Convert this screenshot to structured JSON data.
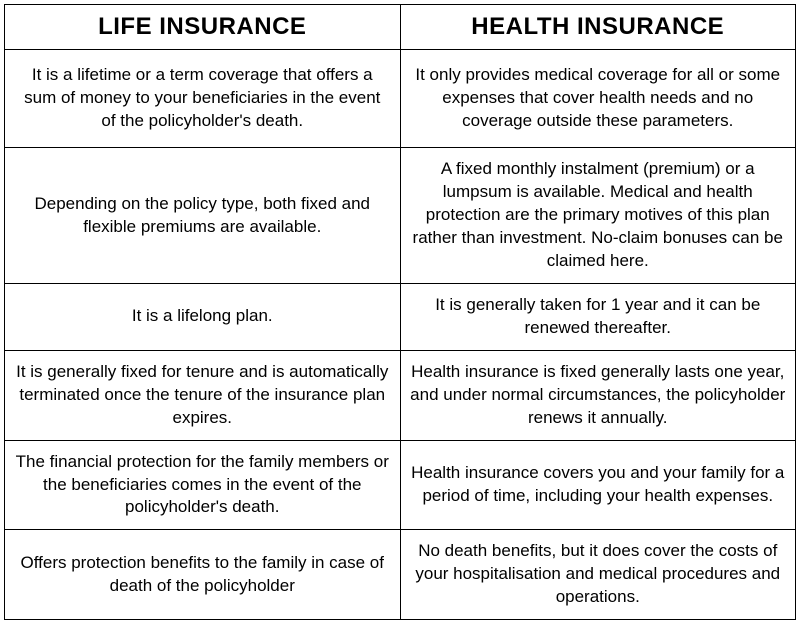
{
  "table": {
    "type": "table",
    "columns": [
      {
        "label": "LIFE INSURANCE",
        "color": "#a01010",
        "fontsize": 24,
        "width_pct": 50,
        "align": "center"
      },
      {
        "label": "HEALTH INSURANCE",
        "color": "#a01010",
        "fontsize": 24,
        "width_pct": 50,
        "align": "center"
      }
    ],
    "rows": [
      [
        "It is a lifetime or a term coverage that offers a sum of money to your beneficiaries in the event of the policyholder's death.",
        "It only provides medical coverage for all or some expenses that cover health needs and no coverage outside these parameters."
      ],
      [
        "Depending on the policy type, both fixed and flexible premiums are available.",
        "A fixed monthly instalment (premium) or a lumpsum is available. Medical and health protection are the primary motives of this plan rather than investment. No-claim bonuses can be claimed here."
      ],
      [
        "It is a lifelong plan.",
        "It is generally taken for 1 year and it can be renewed thereafter."
      ],
      [
        "It is generally fixed for tenure and is automatically terminated once the tenure of the insurance plan expires.",
        "Health insurance is fixed  generally lasts one year, and under normal circumstances, the policyholder renews it annually."
      ],
      [
        "The financial protection for the family members or the beneficiaries comes in the event of the policyholder's death.",
        "Health insurance covers you and your family for a period of time, including your health expenses."
      ],
      [
        "Offers protection benefits to the family in case of death of the policyholder",
        "No death benefits, but it does cover the costs of your hospitalisation and medical procedures and operations."
      ]
    ],
    "border_color": "#000000",
    "border_width": 1,
    "background_color": "#ffffff",
    "body_fontsize": 17,
    "body_color": "#000000",
    "body_align": "center"
  }
}
